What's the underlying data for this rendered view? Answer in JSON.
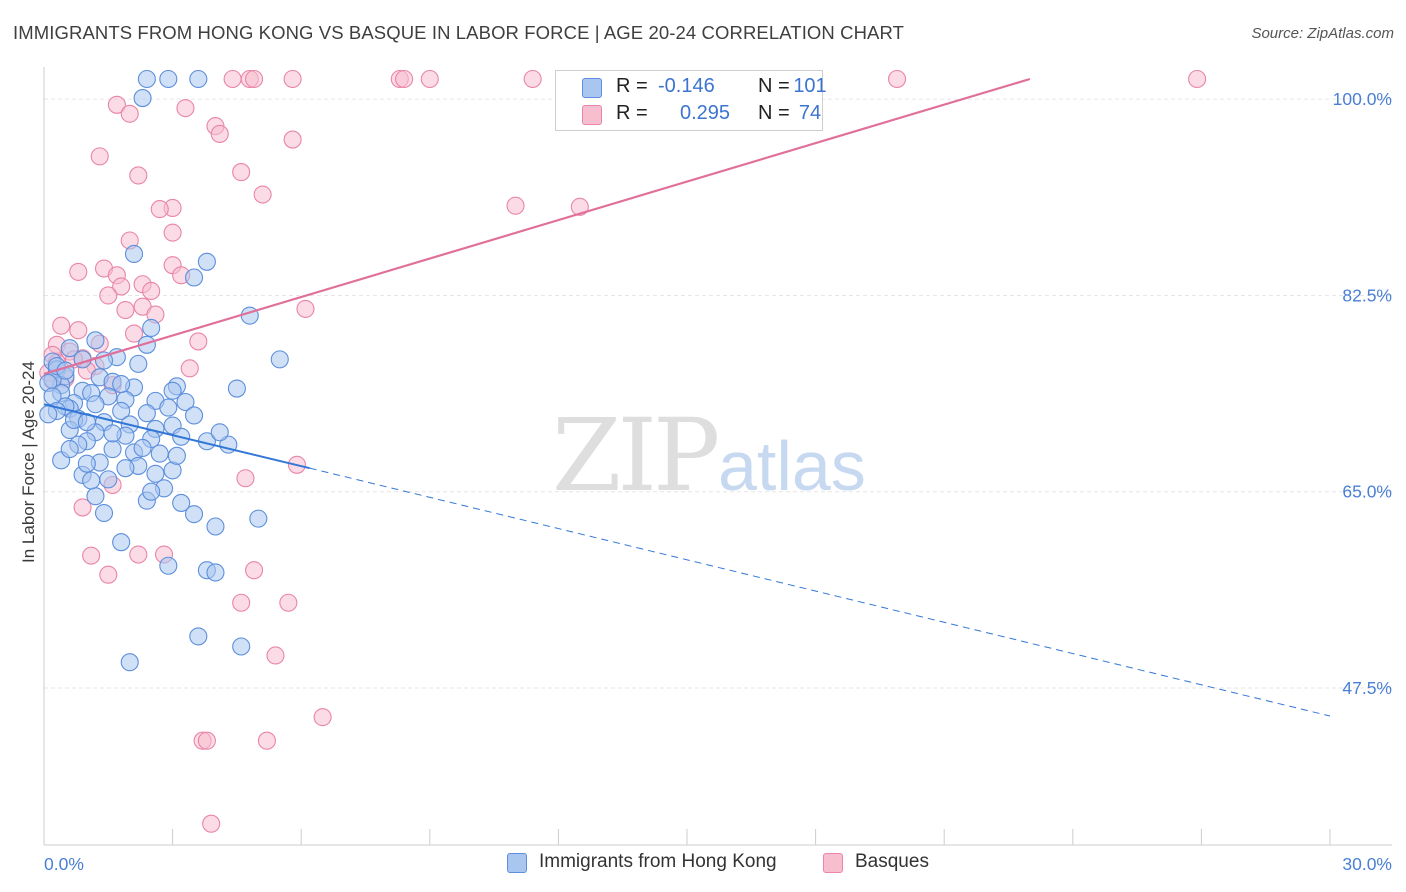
{
  "title": "IMMIGRANTS FROM HONG KONG VS BASQUE IN LABOR FORCE | AGE 20-24 CORRELATION CHART",
  "source": "Source: ZipAtlas.com",
  "watermark": {
    "zip": "ZIP",
    "atlas": "atlas"
  },
  "legend": {
    "series1": {
      "r_label": "R =",
      "r_value": "-0.146",
      "n_label": "N =",
      "n_value": "101"
    },
    "series2": {
      "r_label": "R =",
      "r_value": "0.295",
      "n_label": "N =",
      "n_value": "74"
    }
  },
  "bottom_legend": {
    "series1": "Immigrants from Hong Kong",
    "series2": "Basques"
  },
  "colors": {
    "blue_fill": "#a9c6f0",
    "blue_stroke": "#5d8fdc",
    "blue_line": "#3377d6",
    "pink_fill": "#f7bed0",
    "pink_stroke": "#e985a8",
    "pink_line": "#e0709a",
    "tick_text": "#4a7fd4",
    "grid": "#e6e6e6"
  },
  "chart_data": {
    "type": "scatter",
    "title": "IMMIGRANTS FROM HONG KONG VS BASQUE IN LABOR FORCE | AGE 20-24 CORRELATION CHART",
    "xlabel": "",
    "ylabel": "In Labor Force | Age 20-24",
    "xlim": [
      0,
      30
    ],
    "ylim": [
      33.5,
      101.8
    ],
    "x_tick_labels": [
      {
        "value": 0,
        "label": "0.0%"
      },
      {
        "value": 30,
        "label": "30.0%"
      }
    ],
    "y_tick_labels": [
      {
        "value": 100,
        "label": "100.0%"
      },
      {
        "value": 82.5,
        "label": "82.5%"
      },
      {
        "value": 65,
        "label": "65.0%"
      },
      {
        "value": 47.5,
        "label": "47.5%"
      }
    ],
    "series": [
      {
        "name": "Immigrants from Hong Kong",
        "color": "blue",
        "trend": {
          "x0": 0,
          "y0": 72.8,
          "x1": 6.2,
          "y1": 67.1,
          "x_dash_end": 30,
          "y_dash_end": 45.0
        },
        "points": [
          [
            2.4,
            101.8
          ],
          [
            2.9,
            101.8
          ],
          [
            3.6,
            101.8
          ],
          [
            2.3,
            100.1
          ],
          [
            2.1,
            86.2
          ],
          [
            3.8,
            85.5
          ],
          [
            3.5,
            84.1
          ],
          [
            4.8,
            80.7
          ],
          [
            2.5,
            79.6
          ],
          [
            2.4,
            78.1
          ],
          [
            1.2,
            78.5
          ],
          [
            0.6,
            77.8
          ],
          [
            1.7,
            77.0
          ],
          [
            0.9,
            76.8
          ],
          [
            1.4,
            76.7
          ],
          [
            2.2,
            76.4
          ],
          [
            5.5,
            76.8
          ],
          [
            0.2,
            76.6
          ],
          [
            0.3,
            75.9
          ],
          [
            0.5,
            75.3
          ],
          [
            1.3,
            75.2
          ],
          [
            1.6,
            74.8
          ],
          [
            2.1,
            74.3
          ],
          [
            3.1,
            74.4
          ],
          [
            3.0,
            74.0
          ],
          [
            4.5,
            74.2
          ],
          [
            0.4,
            74.5
          ],
          [
            0.9,
            74.0
          ],
          [
            1.1,
            73.8
          ],
          [
            1.5,
            73.5
          ],
          [
            1.9,
            73.2
          ],
          [
            2.6,
            73.1
          ],
          [
            3.3,
            73.0
          ],
          [
            0.7,
            72.9
          ],
          [
            1.2,
            72.8
          ],
          [
            0.6,
            72.4
          ],
          [
            1.8,
            72.2
          ],
          [
            2.4,
            72.0
          ],
          [
            3.5,
            71.8
          ],
          [
            0.8,
            71.5
          ],
          [
            1.4,
            71.2
          ],
          [
            2.0,
            71.0
          ],
          [
            2.6,
            70.6
          ],
          [
            3.0,
            70.9
          ],
          [
            0.6,
            70.5
          ],
          [
            1.2,
            70.3
          ],
          [
            1.9,
            70.0
          ],
          [
            2.5,
            69.7
          ],
          [
            3.2,
            69.9
          ],
          [
            3.8,
            69.5
          ],
          [
            4.3,
            69.2
          ],
          [
            1.0,
            69.5
          ],
          [
            1.6,
            68.8
          ],
          [
            2.1,
            68.5
          ],
          [
            2.7,
            68.4
          ],
          [
            0.4,
            67.8
          ],
          [
            1.3,
            67.6
          ],
          [
            2.2,
            67.3
          ],
          [
            3.0,
            66.9
          ],
          [
            0.9,
            66.5
          ],
          [
            1.5,
            66.1
          ],
          [
            2.8,
            65.3
          ],
          [
            1.2,
            64.6
          ],
          [
            2.4,
            64.2
          ],
          [
            3.2,
            64.0
          ],
          [
            1.4,
            63.1
          ],
          [
            3.5,
            63.0
          ],
          [
            4.0,
            61.9
          ],
          [
            5.0,
            62.6
          ],
          [
            1.8,
            60.5
          ],
          [
            2.9,
            58.4
          ],
          [
            3.8,
            58.0
          ],
          [
            4.0,
            57.8
          ],
          [
            3.6,
            52.1
          ],
          [
            4.6,
            51.2
          ],
          [
            2.0,
            49.8
          ],
          [
            0.2,
            75.0
          ],
          [
            0.1,
            74.7
          ],
          [
            0.4,
            73.8
          ],
          [
            0.2,
            73.5
          ],
          [
            0.5,
            72.6
          ],
          [
            0.3,
            72.2
          ],
          [
            0.1,
            71.9
          ],
          [
            0.7,
            71.4
          ],
          [
            1.0,
            71.2
          ],
          [
            1.6,
            70.2
          ],
          [
            0.8,
            69.2
          ],
          [
            2.3,
            68.9
          ],
          [
            1.0,
            67.5
          ],
          [
            1.9,
            67.1
          ],
          [
            2.6,
            66.6
          ],
          [
            3.1,
            68.2
          ],
          [
            4.1,
            70.3
          ],
          [
            0.6,
            68.8
          ],
          [
            1.1,
            66.0
          ],
          [
            2.5,
            65.0
          ],
          [
            0.3,
            76.2
          ],
          [
            0.5,
            75.8
          ],
          [
            1.8,
            74.6
          ],
          [
            2.9,
            72.5
          ]
        ]
      },
      {
        "name": "Basques",
        "color": "pink",
        "trend": {
          "x0": 0,
          "y0": 75.5,
          "x1": 23.0,
          "y1": 101.8
        },
        "points": [
          [
            4.4,
            101.8
          ],
          [
            4.8,
            101.8
          ],
          [
            4.9,
            101.8
          ],
          [
            5.8,
            101.8
          ],
          [
            8.3,
            101.8
          ],
          [
            8.4,
            101.8
          ],
          [
            9.0,
            101.8
          ],
          [
            11.4,
            101.8
          ],
          [
            19.9,
            101.8
          ],
          [
            26.9,
            101.8
          ],
          [
            1.7,
            99.5
          ],
          [
            2.0,
            98.7
          ],
          [
            3.3,
            99.2
          ],
          [
            4.0,
            97.6
          ],
          [
            4.1,
            96.9
          ],
          [
            5.8,
            96.4
          ],
          [
            1.3,
            94.9
          ],
          [
            2.2,
            93.2
          ],
          [
            4.6,
            93.5
          ],
          [
            5.1,
            91.5
          ],
          [
            3.0,
            90.3
          ],
          [
            2.7,
            90.2
          ],
          [
            11.0,
            90.5
          ],
          [
            12.5,
            90.4
          ],
          [
            3.0,
            88.1
          ],
          [
            2.0,
            87.4
          ],
          [
            3.0,
            85.2
          ],
          [
            3.2,
            84.3
          ],
          [
            1.4,
            84.9
          ],
          [
            1.7,
            84.3
          ],
          [
            0.8,
            84.6
          ],
          [
            1.8,
            83.3
          ],
          [
            2.3,
            83.5
          ],
          [
            1.5,
            82.5
          ],
          [
            2.5,
            82.9
          ],
          [
            2.3,
            81.5
          ],
          [
            1.9,
            81.2
          ],
          [
            6.1,
            81.3
          ],
          [
            0.4,
            79.8
          ],
          [
            0.8,
            79.4
          ],
          [
            2.1,
            79.1
          ],
          [
            3.6,
            78.4
          ],
          [
            0.3,
            78.1
          ],
          [
            0.6,
            77.5
          ],
          [
            0.2,
            77.2
          ],
          [
            0.9,
            76.9
          ],
          [
            1.2,
            76.2
          ],
          [
            0.1,
            75.6
          ],
          [
            0.5,
            75.1
          ],
          [
            1.6,
            74.5
          ],
          [
            5.9,
            67.4
          ],
          [
            4.7,
            66.2
          ],
          [
            1.6,
            65.6
          ],
          [
            0.9,
            63.6
          ],
          [
            2.2,
            59.4
          ],
          [
            2.8,
            59.4
          ],
          [
            1.1,
            59.3
          ],
          [
            1.5,
            57.6
          ],
          [
            4.9,
            58.0
          ],
          [
            5.7,
            55.1
          ],
          [
            4.6,
            55.1
          ],
          [
            5.4,
            50.4
          ],
          [
            6.5,
            44.9
          ],
          [
            3.7,
            42.8
          ],
          [
            3.8,
            42.8
          ],
          [
            5.2,
            42.8
          ],
          [
            3.9,
            35.4
          ],
          [
            0.3,
            76.5
          ],
          [
            0.7,
            76.8
          ],
          [
            1.0,
            75.8
          ],
          [
            0.2,
            74.9
          ],
          [
            2.6,
            80.8
          ],
          [
            3.4,
            76.0
          ],
          [
            1.3,
            78.2
          ]
        ]
      }
    ]
  }
}
